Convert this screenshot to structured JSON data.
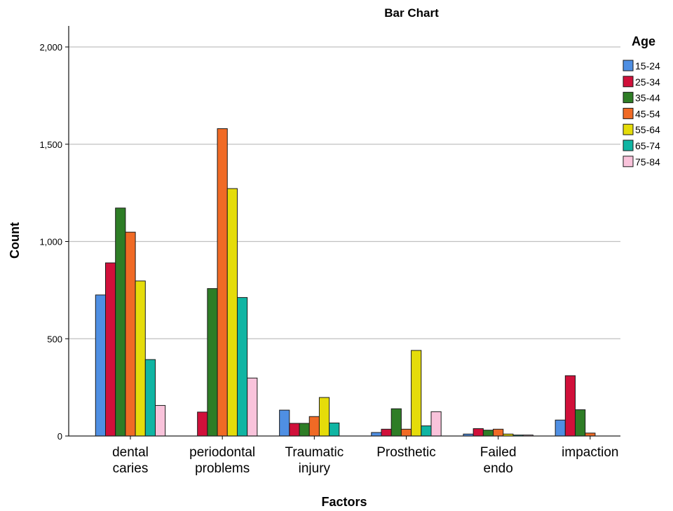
{
  "chart_data": {
    "type": "bar",
    "title": "Bar Chart",
    "xlabel": "Factors",
    "ylabel": "Count",
    "ylim": [
      0,
      2000
    ],
    "yticks": [
      0,
      500,
      1000,
      1500,
      2000
    ],
    "ytick_labels": [
      "0",
      "500",
      "1,000",
      "1,500",
      "2,000"
    ],
    "grid": true,
    "legend_title": "Age",
    "legend_position": "right",
    "categories": [
      [
        "dental",
        "caries"
      ],
      [
        "periodontal",
        "problems"
      ],
      [
        "Traumatic",
        "injury"
      ],
      [
        "Prosthetic"
      ],
      [
        "Failed",
        "endo"
      ],
      [
        "impaction"
      ]
    ],
    "series": [
      {
        "name": "15-24",
        "color": "#4f8fe3",
        "values": [
          725,
          0,
          133,
          18,
          10,
          82
        ]
      },
      {
        "name": "25-34",
        "color": "#d0103a",
        "values": [
          890,
          123,
          65,
          35,
          38,
          310
        ]
      },
      {
        "name": "35-44",
        "color": "#2e7d26",
        "values": [
          1172,
          758,
          65,
          140,
          30,
          135
        ]
      },
      {
        "name": "45-54",
        "color": "#f06a25",
        "values": [
          1048,
          1580,
          100,
          35,
          35,
          15
        ]
      },
      {
        "name": "55-64",
        "color": "#e5dc0a",
        "values": [
          797,
          1272,
          198,
          440,
          10,
          0
        ]
      },
      {
        "name": "65-74",
        "color": "#10b5a3",
        "values": [
          393,
          712,
          67,
          52,
          5,
          0
        ]
      },
      {
        "name": "75-84",
        "color": "#f9c3db",
        "values": [
          157,
          298,
          0,
          125,
          5,
          0
        ]
      }
    ]
  }
}
